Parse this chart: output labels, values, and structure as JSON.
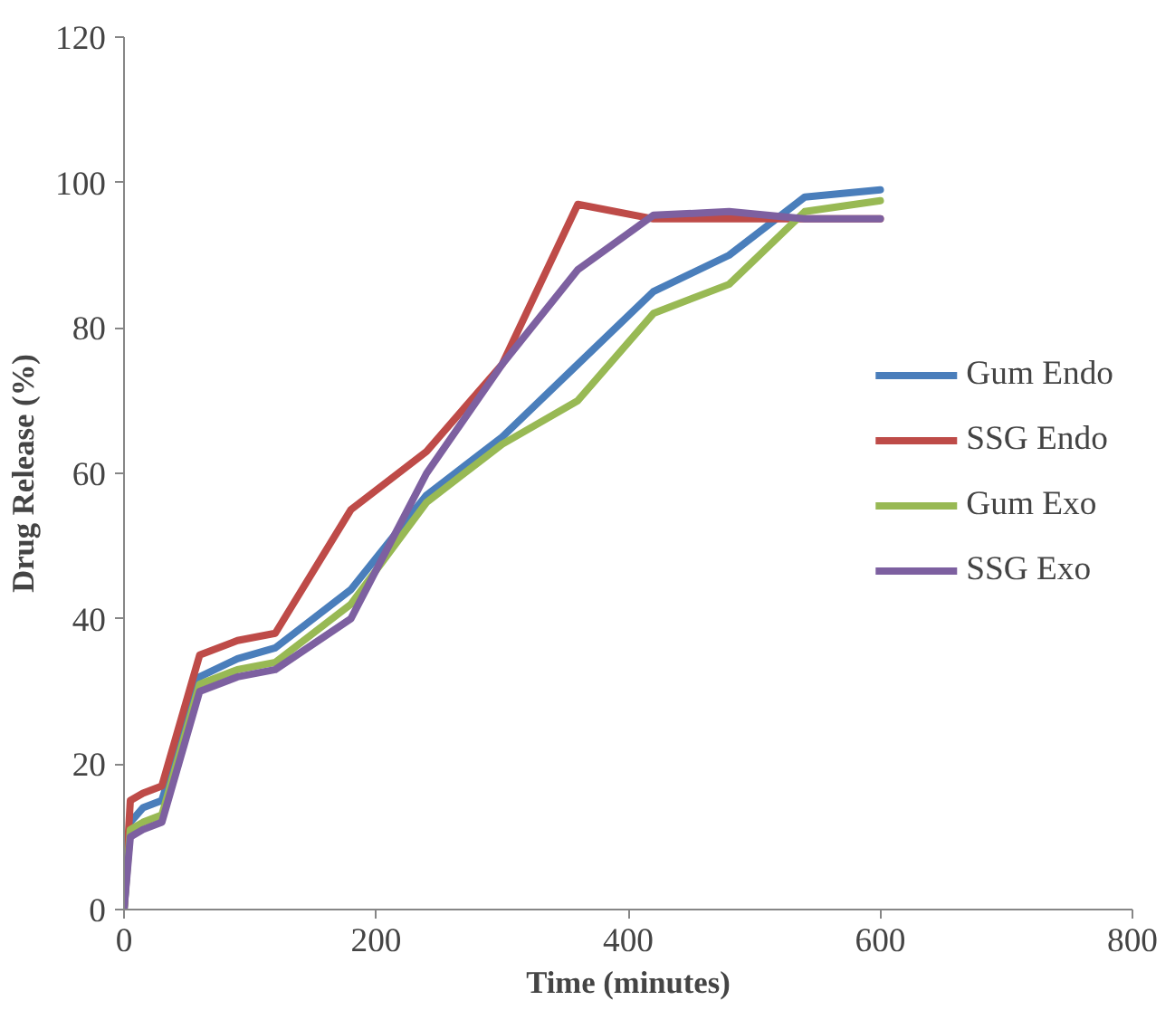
{
  "chart_data": {
    "type": "line",
    "xlabel": "Time (minutes)",
    "ylabel": "Drug Release (%)",
    "x": [
      0,
      5,
      15,
      30,
      60,
      90,
      120,
      180,
      240,
      300,
      360,
      420,
      480,
      540,
      600
    ],
    "xlim": [
      0,
      800
    ],
    "xticks": [
      0,
      200,
      400,
      600,
      800
    ],
    "ylim": [
      0,
      120
    ],
    "yticks": [
      0,
      20,
      40,
      60,
      80,
      100,
      120
    ],
    "grid": false,
    "legend": "right",
    "marker": "none",
    "line_style": "solid",
    "series": [
      {
        "name": "Gum Endo",
        "color": "#4a7ebb",
        "values": [
          0,
          12,
          14,
          15,
          32,
          34.5,
          36,
          44,
          57,
          65,
          75,
          85,
          90,
          98,
          99
        ]
      },
      {
        "name": "SSG Endo",
        "color": "#be4b48",
        "values": [
          0,
          15,
          16,
          17,
          35,
          37,
          38,
          55,
          63,
          75,
          97,
          95,
          95,
          95,
          95
        ]
      },
      {
        "name": "Gum Exo",
        "color": "#98b954",
        "values": [
          0,
          11,
          12,
          13,
          31,
          33,
          34,
          42,
          56,
          64,
          70,
          82,
          86,
          96,
          97.5
        ]
      },
      {
        "name": "SSG Exo",
        "color": "#7d60a0",
        "values": [
          0,
          10,
          11,
          12,
          30,
          32,
          33,
          40,
          60,
          75,
          88,
          95.5,
          96,
          95,
          95
        ]
      }
    ]
  }
}
